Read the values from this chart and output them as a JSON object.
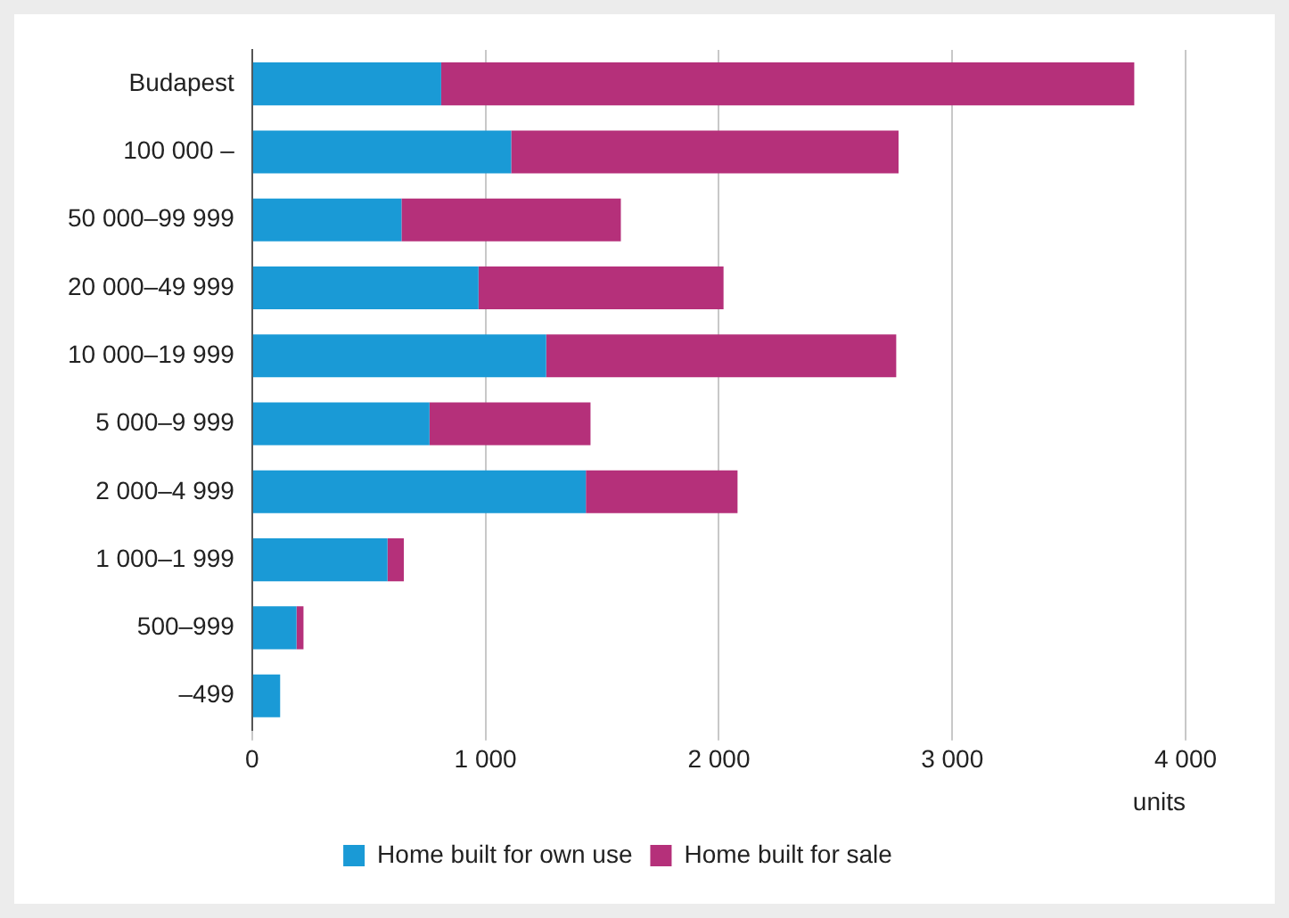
{
  "chart_data": {
    "type": "bar",
    "orientation": "horizontal",
    "stacked": true,
    "xlabel": "units",
    "categories": [
      "Budapest",
      "100 000 –",
      "50 000–99 999",
      "20 000–49 999",
      "10 000–19 999",
      "5 000–9 999",
      "2 000–4 999",
      "1 000–1 999",
      "500–999",
      "–499"
    ],
    "series": [
      {
        "name": "Home built for own use",
        "color": "#1a9ad6",
        "values": [
          810,
          1110,
          640,
          970,
          1260,
          760,
          1430,
          580,
          190,
          120
        ]
      },
      {
        "name": "Home built for sale",
        "color": "#b5307a",
        "values": [
          2970,
          1660,
          940,
          1050,
          1500,
          690,
          650,
          70,
          30,
          0
        ]
      }
    ],
    "xlim": [
      0,
      4000
    ],
    "xticks": [
      {
        "value": 0,
        "label": "0"
      },
      {
        "value": 1000,
        "label": "1 000"
      },
      {
        "value": 2000,
        "label": "2 000"
      },
      {
        "value": 3000,
        "label": "3 000"
      },
      {
        "value": 4000,
        "label": "4 000"
      }
    ],
    "grid": "x",
    "legend": "bottom"
  }
}
